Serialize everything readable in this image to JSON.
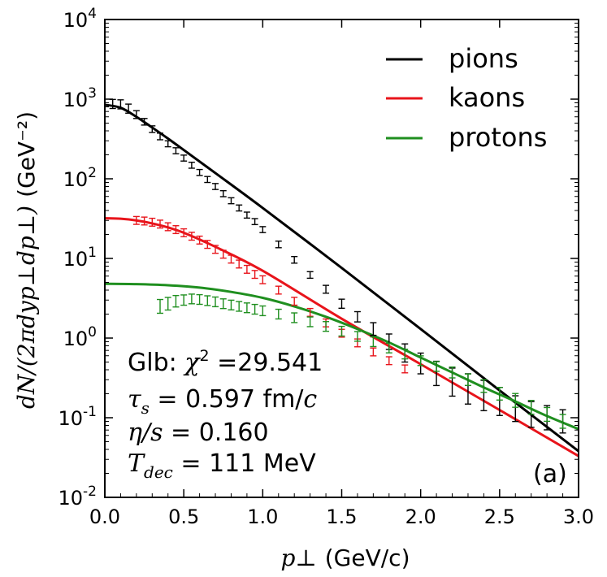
{
  "chart_data": {
    "type": "line",
    "xlabel": {
      "math": "p⊥",
      "unit": "(GeV/c)"
    },
    "ylabel": {
      "math": "dN/(2πdyp⊥dp⊥)",
      "unit": "(GeV⁻²)"
    },
    "xlim": [
      0.0,
      3.0
    ],
    "ylim": [
      0.01,
      10000
    ],
    "yscale": "log",
    "x_ticks": [
      "0.0",
      "0.5",
      "1.0",
      "1.5",
      "2.0",
      "2.5",
      "3.0"
    ],
    "x_tick_values": [
      0,
      0.5,
      1.0,
      1.5,
      2.0,
      2.5,
      3.0
    ],
    "y_ticks": [
      {
        "base": "10",
        "exp": "-2",
        "value": 0.01
      },
      {
        "base": "10",
        "exp": "-1",
        "value": 0.1
      },
      {
        "base": "10",
        "exp": "0",
        "value": 1
      },
      {
        "base": "10",
        "exp": "1",
        "value": 10
      },
      {
        "base": "10",
        "exp": "2",
        "value": 100
      },
      {
        "base": "10",
        "exp": "3",
        "value": 1000
      },
      {
        "base": "10",
        "exp": "4",
        "value": 10000
      }
    ],
    "legend_position": "top-right",
    "series": [
      {
        "name": "pions",
        "color": "#000000",
        "curve": {
          "x": [
            0.0,
            0.1,
            0.2,
            0.3,
            0.4,
            0.5,
            0.7,
            1.0,
            1.5,
            2.0,
            2.5,
            3.0
          ],
          "y": [
            850,
            780,
            600,
            440,
            320,
            230,
            118,
            43,
            7.6,
            1.3,
            0.22,
            0.038
          ]
        },
        "points": {
          "x": [
            0.05,
            0.1,
            0.15,
            0.2,
            0.25,
            0.3,
            0.35,
            0.4,
            0.45,
            0.5,
            0.55,
            0.6,
            0.65,
            0.7,
            0.75,
            0.8,
            0.85,
            0.9,
            0.95,
            1.0,
            1.1,
            1.2,
            1.3,
            1.4,
            1.5,
            1.6,
            1.7,
            1.8,
            1.9,
            2.0,
            2.1,
            2.2,
            2.3,
            2.4,
            2.5,
            2.6,
            2.7,
            2.8,
            2.9
          ],
          "y": [
            870,
            860,
            760,
            640,
            520,
            420,
            340,
            275,
            225,
            182,
            148,
            120,
            98,
            80,
            65,
            53,
            43,
            35,
            29,
            23,
            15,
            9.6,
            6.2,
            4.1,
            2.7,
            1.85,
            1.3,
            0.9,
            0.65,
            0.48,
            0.36,
            0.28,
            0.23,
            0.19,
            0.16,
            0.13,
            0.11,
            0.1,
            0.09
          ],
          "err_rel": [
            0.14,
            0.14,
            0.14,
            0.12,
            0.1,
            0.1,
            0.1,
            0.09,
            0.09,
            0.09,
            0.09,
            0.09,
            0.09,
            0.09,
            0.09,
            0.09,
            0.09,
            0.09,
            0.09,
            0.09,
            0.1,
            0.1,
            0.1,
            0.12,
            0.14,
            0.16,
            0.2,
            0.25,
            0.3,
            0.35,
            0.42,
            0.5,
            0.55,
            0.55,
            0.5,
            0.45,
            0.45,
            0.42,
            0.4
          ]
        }
      },
      {
        "name": "kaons",
        "color": "#e8141b",
        "curve": {
          "x": [
            0.0,
            0.1,
            0.2,
            0.3,
            0.4,
            0.5,
            0.7,
            1.0,
            1.5,
            2.0,
            2.5,
            3.0
          ],
          "y": [
            32,
            31.5,
            30,
            27.5,
            24.5,
            21,
            14,
            7,
            1.75,
            0.47,
            0.125,
            0.033
          ]
        },
        "points": {
          "x": [
            0.2,
            0.25,
            0.3,
            0.35,
            0.4,
            0.45,
            0.5,
            0.55,
            0.6,
            0.65,
            0.7,
            0.75,
            0.8,
            0.85,
            0.9,
            0.95,
            1.0,
            1.1,
            1.2,
            1.3,
            1.4,
            1.5,
            1.6,
            1.7,
            1.8,
            1.9
          ],
          "y": [
            30,
            29.5,
            28.5,
            27,
            25,
            23,
            21,
            19,
            17,
            15,
            13,
            11.3,
            9.8,
            8.5,
            7.3,
            6.3,
            5.4,
            4.0,
            2.9,
            2.1,
            1.55,
            1.15,
            0.87,
            0.67,
            0.52,
            0.41
          ],
          "err_rel": [
            0.12,
            0.12,
            0.12,
            0.12,
            0.12,
            0.12,
            0.12,
            0.12,
            0.12,
            0.12,
            0.12,
            0.12,
            0.12,
            0.12,
            0.12,
            0.12,
            0.12,
            0.12,
            0.12,
            0.12,
            0.12,
            0.12,
            0.12,
            0.12,
            0.12,
            0.12
          ]
        }
      },
      {
        "name": "protons",
        "color": "#1f8f1f",
        "curve": {
          "x": [
            0.0,
            0.2,
            0.4,
            0.6,
            0.8,
            1.0,
            1.2,
            1.4,
            1.6,
            1.8,
            2.0,
            2.2,
            2.4,
            2.6,
            2.8,
            3.0
          ],
          "y": [
            4.8,
            4.75,
            4.6,
            4.3,
            3.8,
            3.2,
            2.5,
            1.85,
            1.3,
            0.88,
            0.57,
            0.37,
            0.24,
            0.16,
            0.105,
            0.072
          ]
        },
        "points": {
          "x": [
            0.35,
            0.4,
            0.45,
            0.5,
            0.55,
            0.6,
            0.65,
            0.7,
            0.75,
            0.8,
            0.85,
            0.9,
            0.95,
            1.0,
            1.1,
            1.2,
            1.3,
            1.4,
            1.5,
            1.6,
            1.7,
            1.8,
            1.9,
            2.0,
            2.1,
            2.2,
            2.3,
            2.4,
            2.5,
            2.6,
            2.7,
            2.8,
            2.9
          ],
          "y": [
            2.5,
            2.7,
            2.9,
            3.0,
            3.1,
            3.05,
            2.95,
            2.85,
            2.7,
            2.6,
            2.5,
            2.4,
            2.3,
            2.2,
            2.0,
            1.8,
            1.6,
            1.4,
            1.22,
            1.05,
            0.9,
            0.75,
            0.63,
            0.52,
            0.44,
            0.37,
            0.3,
            0.25,
            0.2,
            0.165,
            0.135,
            0.11,
            0.09
          ],
          "err_rel": [
            0.22,
            0.2,
            0.18,
            0.16,
            0.15,
            0.15,
            0.15,
            0.15,
            0.15,
            0.15,
            0.15,
            0.15,
            0.15,
            0.15,
            0.15,
            0.15,
            0.15,
            0.15,
            0.15,
            0.15,
            0.15,
            0.15,
            0.15,
            0.15,
            0.15,
            0.17,
            0.18,
            0.2,
            0.2,
            0.22,
            0.22,
            0.22,
            0.22
          ]
        }
      }
    ],
    "annotations": [
      {
        "math": "χ",
        "pre": "Glb: ",
        "sup": "2",
        "post": " =29.541"
      },
      {
        "math": "τ",
        "sub": "s",
        "post": " = 0.597 fm/",
        "tail_math": "c"
      },
      {
        "math": "η/s",
        "post": " = 0.160"
      },
      {
        "math": "T",
        "sub": "dec",
        "post": " = 111 MeV"
      }
    ],
    "panel_label": "(a)"
  }
}
